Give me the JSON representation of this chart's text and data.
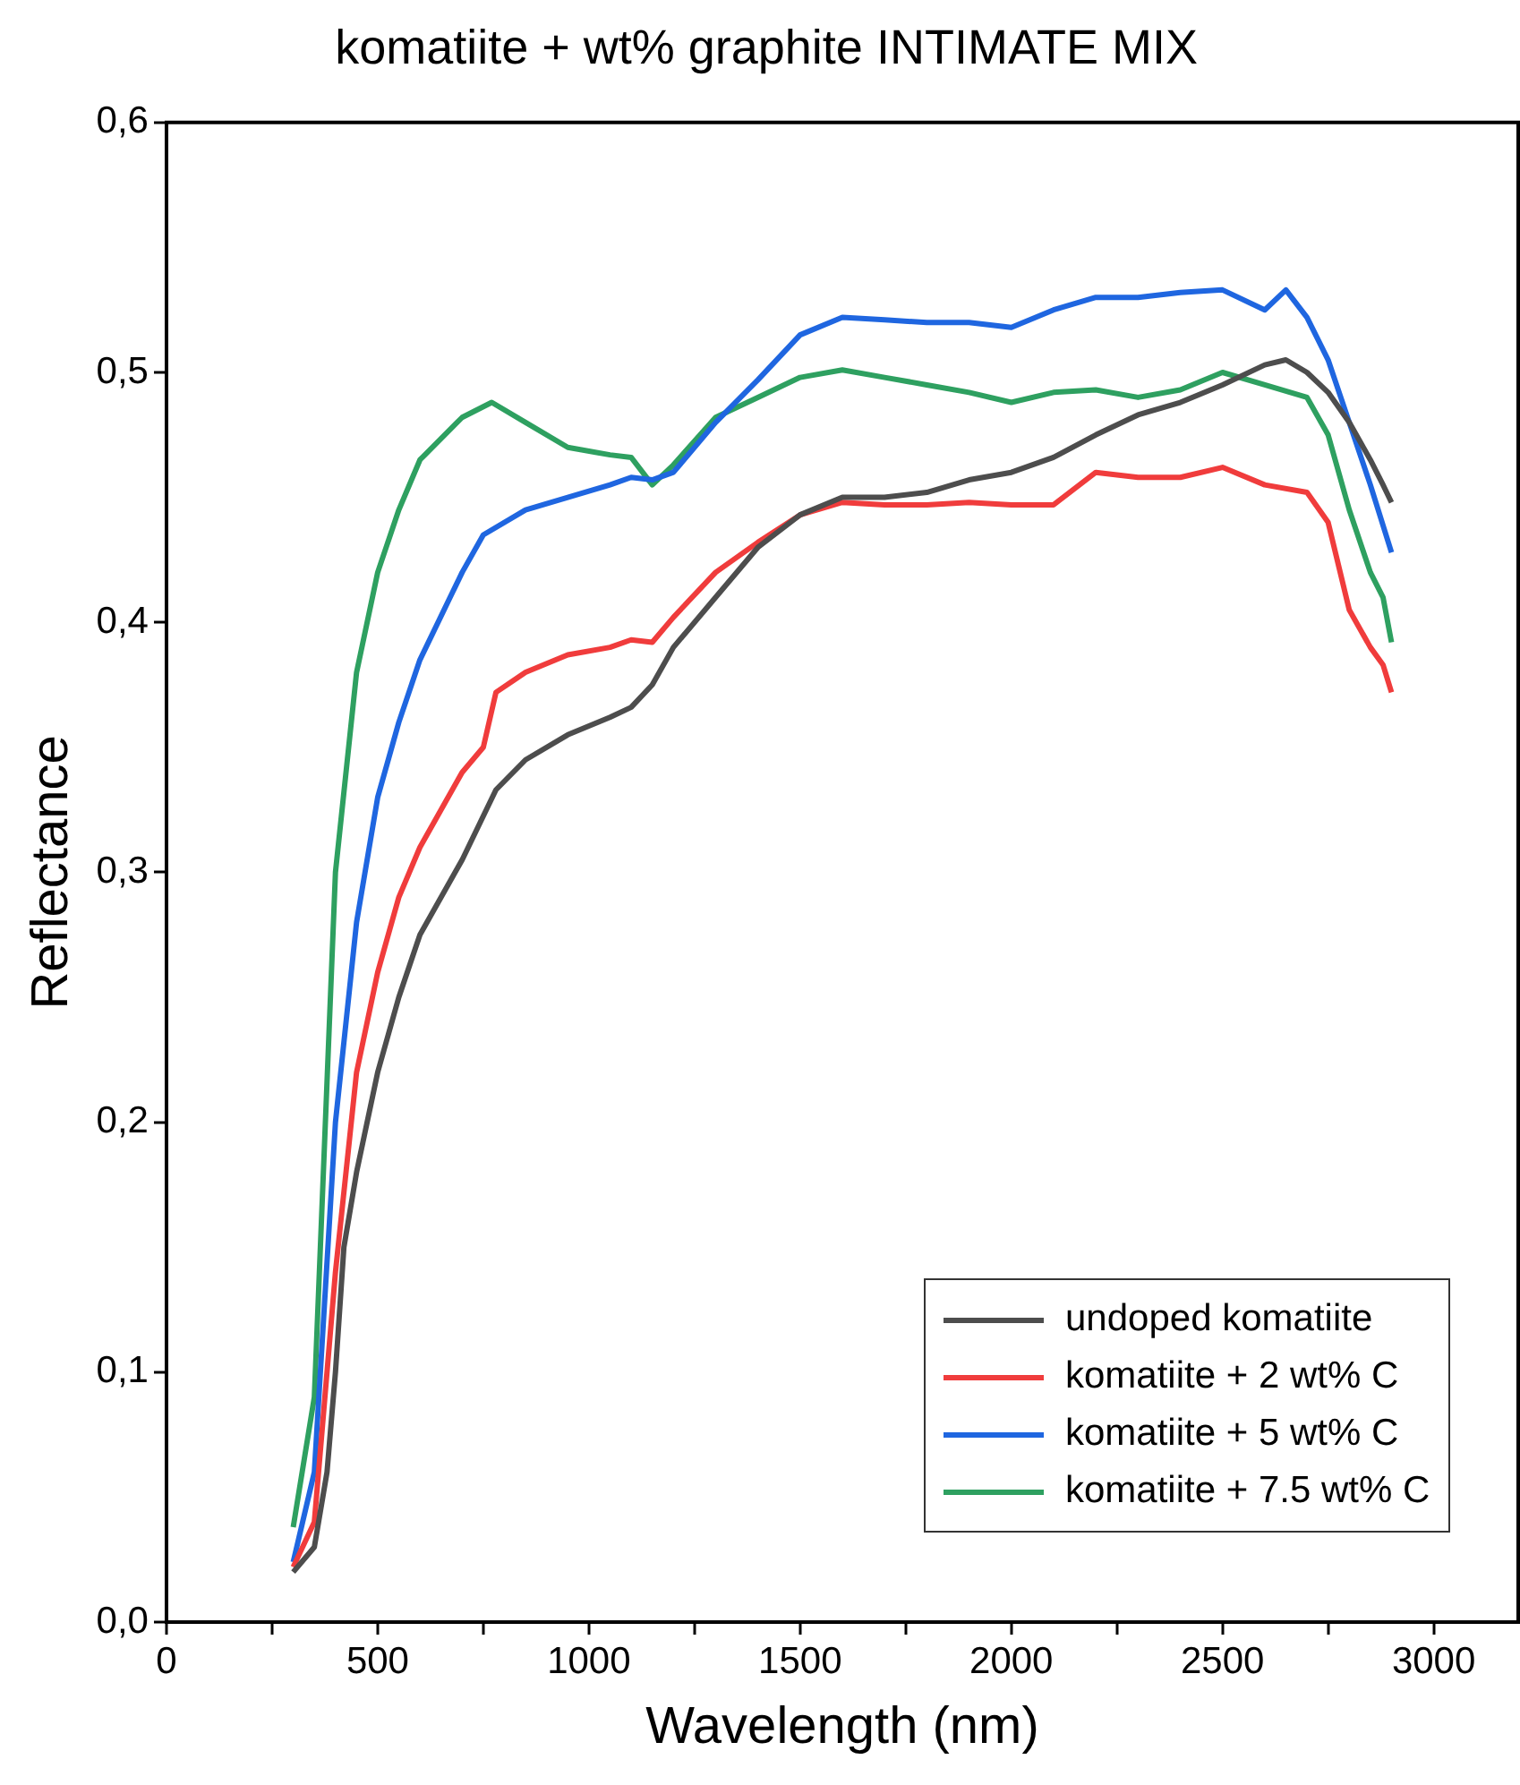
{
  "chart_data": {
    "type": "line",
    "title": "komatiite + wt% graphite INTIMATE MIX",
    "xlabel": "Wavelength (nm)",
    "ylabel": "Reflectance",
    "xlim": [
      0,
      3200
    ],
    "ylim": [
      0,
      0.6
    ],
    "xticks": [
      0,
      {
        "value": 250,
        "label": null
      },
      500,
      {
        "value": 750,
        "label": null
      },
      1000,
      {
        "value": 1250,
        "label": null
      },
      1500,
      {
        "value": 1750,
        "label": null
      },
      2000,
      {
        "value": 2250,
        "label": null
      },
      2500,
      {
        "value": 2750,
        "label": null
      },
      3000
    ],
    "yticks": [
      {
        "value": 0,
        "label": "0,0"
      },
      {
        "value": 0.1,
        "label": "0,1"
      },
      {
        "value": 0.2,
        "label": "0,2"
      },
      {
        "value": 0.3,
        "label": "0,3"
      },
      {
        "value": 0.4,
        "label": "0,4"
      },
      {
        "value": 0.5,
        "label": "0,5"
      },
      {
        "value": 0.6,
        "label": "0,6"
      }
    ],
    "grid": false,
    "legend": "bottom right",
    "marker": "none",
    "line_style": "solid",
    "series": [
      {
        "name": "undoped komatiite",
        "color": "#4d4d4d",
        "x": [
          300,
          350,
          380,
          400,
          420,
          450,
          500,
          550,
          600,
          700,
          780,
          850,
          950,
          1050,
          1100,
          1150,
          1200,
          1300,
          1400,
          1500,
          1600,
          1700,
          1800,
          1900,
          2000,
          2100,
          2200,
          2300,
          2400,
          2500,
          2600,
          2650,
          2700,
          2750,
          2800,
          2850,
          2880,
          2900
        ],
        "values": [
          0.02,
          0.03,
          0.06,
          0.1,
          0.15,
          0.18,
          0.22,
          0.25,
          0.275,
          0.305,
          0.333,
          0.345,
          0.355,
          0.362,
          0.366,
          0.375,
          0.39,
          0.41,
          0.43,
          0.443,
          0.45,
          0.45,
          0.452,
          0.457,
          0.46,
          0.466,
          0.475,
          0.483,
          0.488,
          0.495,
          0.503,
          0.505,
          0.5,
          0.492,
          0.48,
          0.465,
          0.455,
          0.448
        ]
      },
      {
        "name": "komatiite + 2 wt% C",
        "color": "#f03c3c",
        "x": [
          300,
          350,
          400,
          450,
          500,
          550,
          600,
          700,
          750,
          780,
          850,
          950,
          1050,
          1100,
          1150,
          1200,
          1300,
          1400,
          1500,
          1600,
          1700,
          1800,
          1900,
          2000,
          2100,
          2200,
          2300,
          2400,
          2500,
          2600,
          2700,
          2750,
          2800,
          2850,
          2880,
          2900
        ],
        "values": [
          0.022,
          0.04,
          0.14,
          0.22,
          0.26,
          0.29,
          0.31,
          0.34,
          0.35,
          0.372,
          0.38,
          0.387,
          0.39,
          0.393,
          0.392,
          0.402,
          0.42,
          0.432,
          0.443,
          0.448,
          0.447,
          0.447,
          0.448,
          0.447,
          0.447,
          0.46,
          0.458,
          0.458,
          0.462,
          0.455,
          0.452,
          0.44,
          0.405,
          0.39,
          0.383,
          0.372
        ]
      },
      {
        "name": "komatiite + 5 wt% C",
        "color": "#1f66e0",
        "x": [
          300,
          350,
          400,
          450,
          500,
          550,
          600,
          700,
          750,
          850,
          950,
          1050,
          1100,
          1150,
          1200,
          1300,
          1400,
          1500,
          1600,
          1700,
          1800,
          1900,
          2000,
          2100,
          2200,
          2300,
          2400,
          2500,
          2600,
          2650,
          2700,
          2750,
          2800,
          2850,
          2900
        ],
        "values": [
          0.024,
          0.06,
          0.2,
          0.28,
          0.33,
          0.36,
          0.385,
          0.42,
          0.435,
          0.445,
          0.45,
          0.455,
          0.458,
          0.457,
          0.46,
          0.48,
          0.497,
          0.515,
          0.522,
          0.521,
          0.52,
          0.52,
          0.518,
          0.525,
          0.53,
          0.53,
          0.532,
          0.533,
          0.525,
          0.533,
          0.522,
          0.505,
          0.48,
          0.455,
          0.428
        ]
      },
      {
        "name": "komatiite + 7.5 wt% C",
        "color": "#2ea060",
        "x": [
          300,
          350,
          400,
          450,
          500,
          550,
          600,
          700,
          770,
          850,
          950,
          1050,
          1100,
          1150,
          1200,
          1300,
          1400,
          1500,
          1600,
          1700,
          1800,
          1900,
          2000,
          2100,
          2200,
          2300,
          2400,
          2500,
          2600,
          2700,
          2750,
          2800,
          2850,
          2880,
          2900
        ],
        "values": [
          0.038,
          0.09,
          0.3,
          0.38,
          0.42,
          0.445,
          0.465,
          0.482,
          0.488,
          0.48,
          0.47,
          0.467,
          0.466,
          0.455,
          0.463,
          0.482,
          0.49,
          0.498,
          0.501,
          0.498,
          0.495,
          0.492,
          0.488,
          0.492,
          0.493,
          0.49,
          0.493,
          0.5,
          0.495,
          0.49,
          0.475,
          0.445,
          0.42,
          0.41,
          0.392
        ]
      }
    ]
  }
}
